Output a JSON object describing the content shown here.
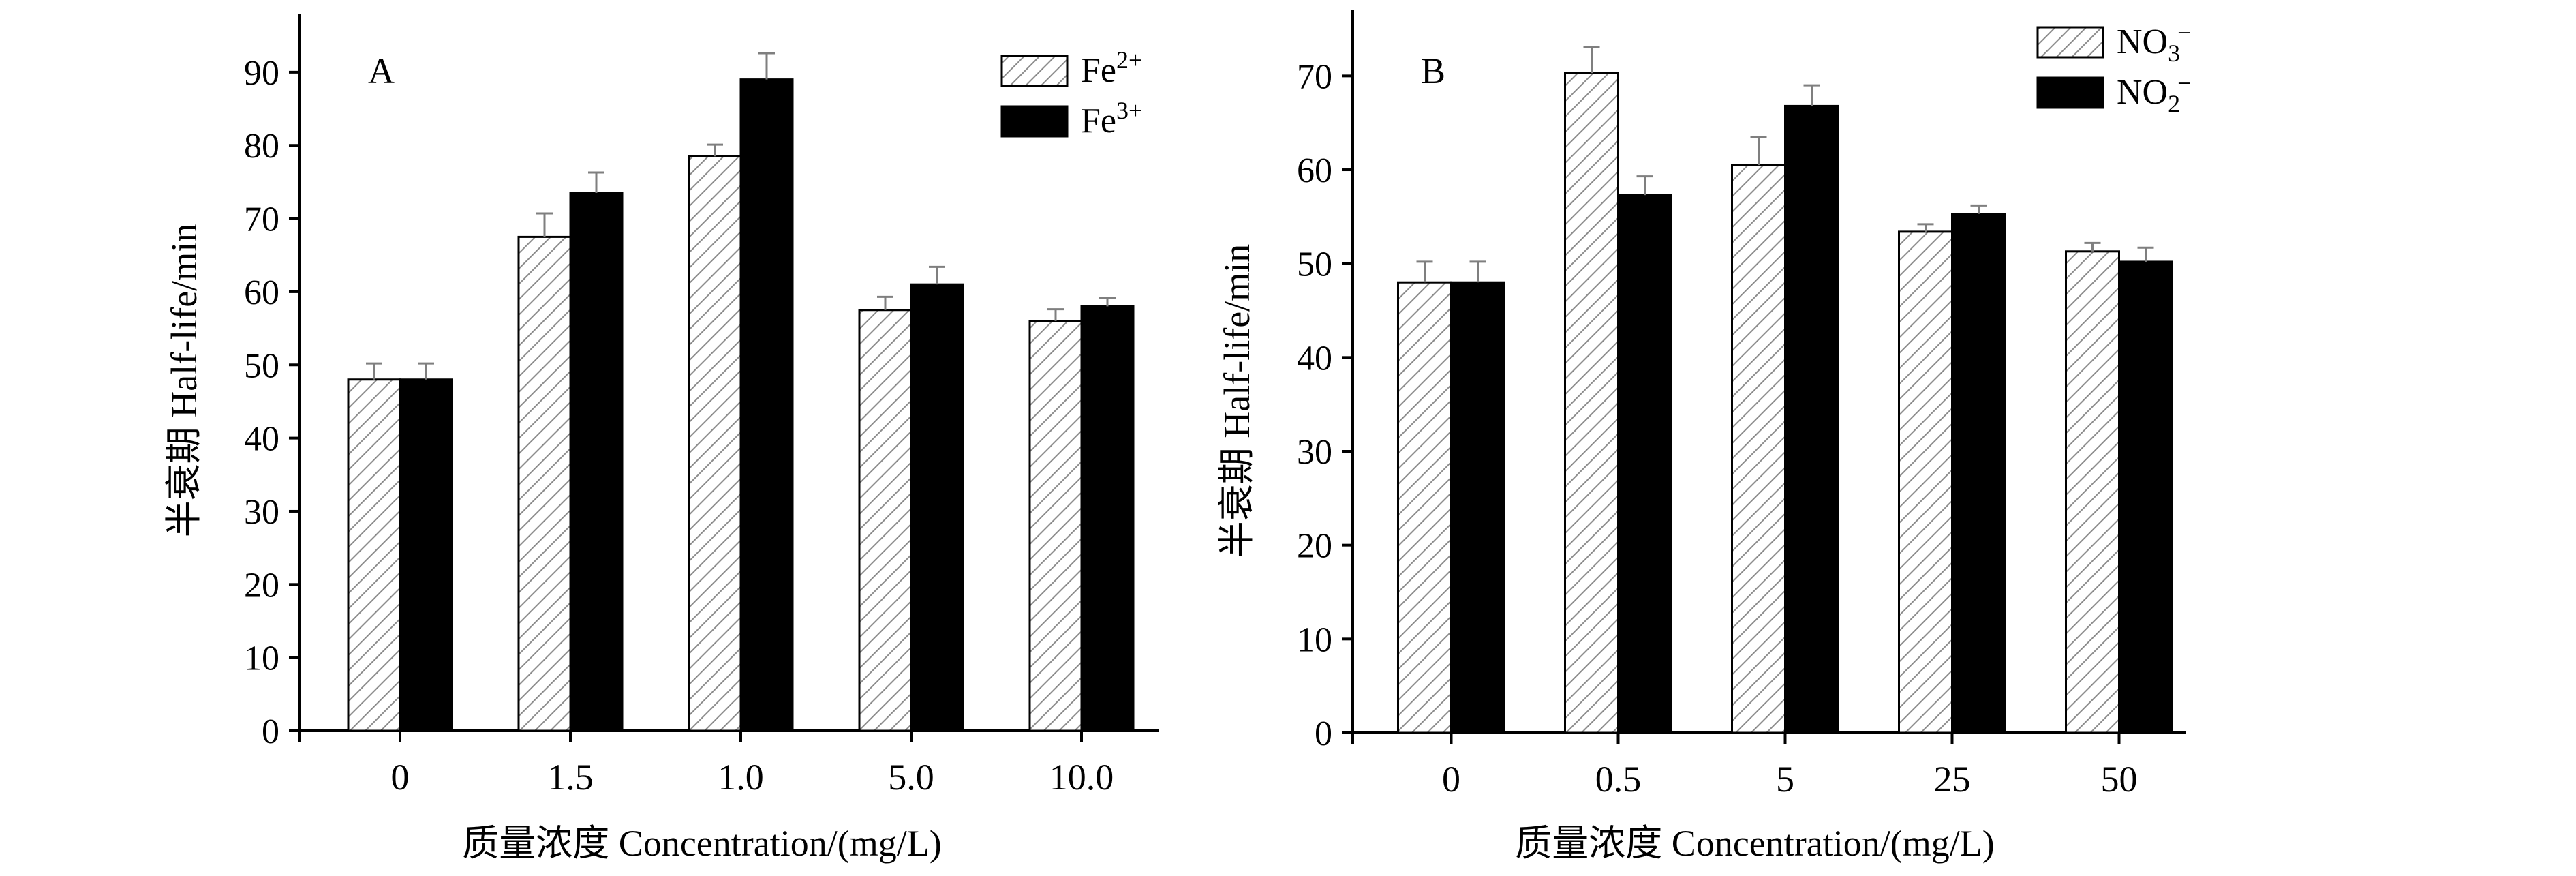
{
  "colors": {
    "axis": "#000000",
    "hatch_fill": "#ffffff",
    "hatch_stroke": "#8c8c8c",
    "solid_fill": "#000000",
    "error_bar": "#7f7f7f"
  },
  "chart_data": [
    {
      "type": "bar",
      "panel_label": "A",
      "ylabel": "半衰期 Half-life/min",
      "xlabel": "质量浓度 Concentration/(mg/L)",
      "categories": [
        "0",
        "1.5",
        "1.0",
        "5.0",
        "10.0"
      ],
      "ylim": [
        0,
        98
      ],
      "yticks": [
        0,
        10,
        20,
        30,
        40,
        50,
        60,
        70,
        80,
        90
      ],
      "legend_position": "top-right",
      "series": [
        {
          "name": "Fe",
          "superscript": "2+",
          "style": "hatched",
          "values": [
            48,
            67.5,
            78.5,
            57.5,
            56
          ],
          "errors": [
            2.2,
            3.2,
            1.6,
            1.8,
            1.6
          ]
        },
        {
          "name": "Fe",
          "superscript": "3+",
          "style": "solid",
          "values": [
            48,
            73.5,
            89,
            61,
            58
          ],
          "errors": [
            2.2,
            2.8,
            3.6,
            2.4,
            1.2
          ]
        }
      ]
    },
    {
      "type": "bar",
      "panel_label": "B",
      "ylabel": "半衰期 Half-life/min",
      "xlabel": "质量浓度 Concentration/(mg/L)",
      "categories": [
        "0",
        "0.5",
        "5",
        "25",
        "50"
      ],
      "ylim": [
        0,
        77
      ],
      "yticks": [
        0,
        10,
        20,
        30,
        40,
        50,
        60,
        70
      ],
      "legend_position": "top-right",
      "series": [
        {
          "name": "NO",
          "subscript": "3",
          "superscript": "−",
          "style": "hatched",
          "values": [
            48,
            70.3,
            60.5,
            53.4,
            51.3
          ],
          "errors": [
            2.2,
            2.8,
            3.0,
            0.8,
            0.9
          ]
        },
        {
          "name": "NO",
          "subscript": "2",
          "superscript": "−",
          "style": "solid",
          "values": [
            48,
            57.3,
            66.8,
            55.3,
            50.2
          ],
          "errors": [
            2.2,
            2.0,
            2.2,
            0.9,
            1.5
          ]
        }
      ]
    }
  ]
}
